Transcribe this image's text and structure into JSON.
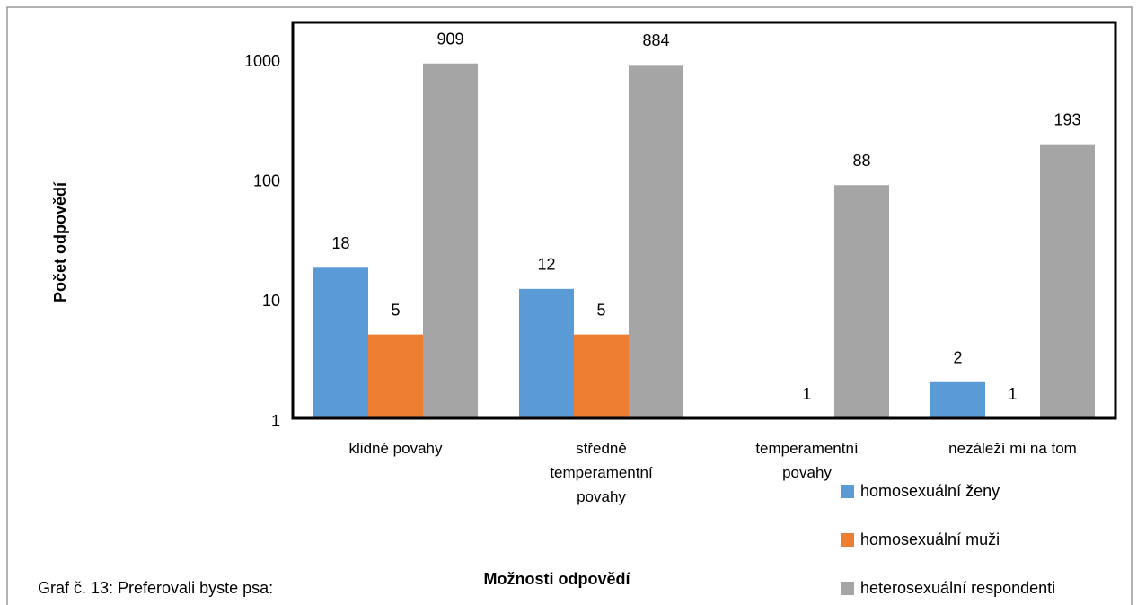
{
  "chart_data": {
    "type": "bar",
    "title": "Graf č. 13: Preferovali byste psa:",
    "x_label": "Možnosti odpovědí",
    "y_label": "Počet odpovědí",
    "categories": [
      "klidné povahy",
      "středně temperamentní povahy",
      "temperamentní povahy",
      "nezáleží mi na tom"
    ],
    "series": [
      {
        "name": "homosexuální ženy",
        "color": "#5b9bd5",
        "values": [
          18,
          12,
          null,
          2
        ]
      },
      {
        "name": "homosexuální muži",
        "color": "#ed7d31",
        "values": [
          5,
          5,
          1,
          1
        ]
      },
      {
        "name": "heterosexuální respondenti",
        "color": "#a5a5a5",
        "values": [
          909,
          884,
          88,
          193
        ]
      }
    ],
    "ylim": [
      1,
      2000
    ],
    "yticks": [
      1,
      10,
      100,
      1000
    ],
    "log_scale": true,
    "grid": false,
    "legend": "bottom-right"
  }
}
